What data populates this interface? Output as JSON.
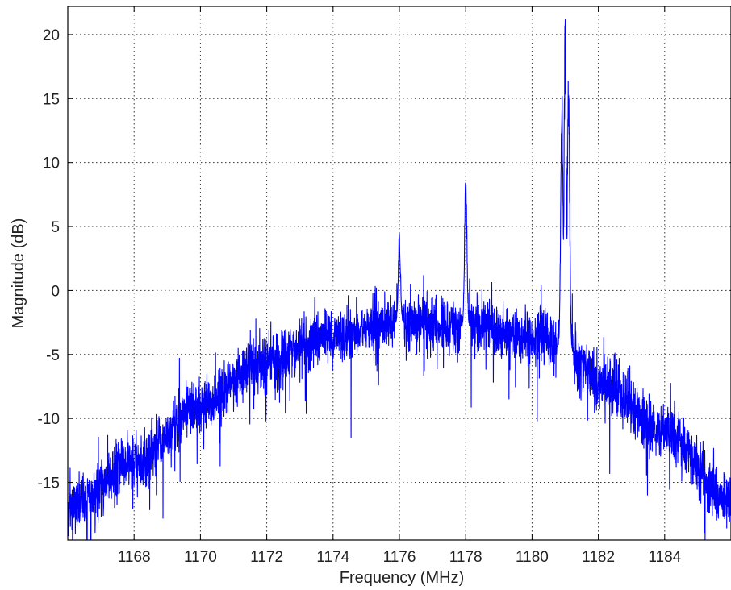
{
  "chart_data": {
    "type": "line",
    "title": "",
    "xlabel": "Frequency (MHz)",
    "ylabel": "Magnitude (dB)",
    "xlim": [
      1166,
      1186
    ],
    "ylim": [
      -19.5,
      22.2
    ],
    "x_ticks": [
      1168,
      1170,
      1172,
      1174,
      1176,
      1178,
      1180,
      1182,
      1184
    ],
    "x_tick_labels": [
      "1168",
      "1170",
      "1172",
      "1174",
      "1176",
      "1178",
      "1180",
      "1182",
      "1184"
    ],
    "y_ticks": [
      -15,
      -10,
      -5,
      0,
      5,
      10,
      15,
      20
    ],
    "y_tick_labels": [
      "-15",
      "-10",
      "-5",
      "0",
      "5",
      "10",
      "15",
      "20"
    ],
    "grid": true,
    "series": [
      {
        "color": "#0000ff",
        "description_of_shape": "noisy parabolic envelope with narrowband peaks",
        "envelope": {
          "x": [
            1166,
            1168,
            1170,
            1172,
            1174,
            1176,
            1178,
            1180,
            1181,
            1182,
            1184,
            1186
          ],
          "y": [
            -17,
            -13.5,
            -9,
            -5.5,
            -3.5,
            -2.5,
            -2.8,
            -3.5,
            -4.5,
            -7,
            -11,
            -16.5
          ]
        },
        "peaks": [
          {
            "x": 1176.0,
            "y": 4.8
          },
          {
            "x": 1178.0,
            "y": 10.0
          },
          {
            "x": 1180.9,
            "y": 16.0
          },
          {
            "x": 1181.0,
            "y": 22.2
          },
          {
            "x": 1181.1,
            "y": 17.8
          }
        ],
        "noise_amplitude_db": 1.4
      }
    ]
  }
}
